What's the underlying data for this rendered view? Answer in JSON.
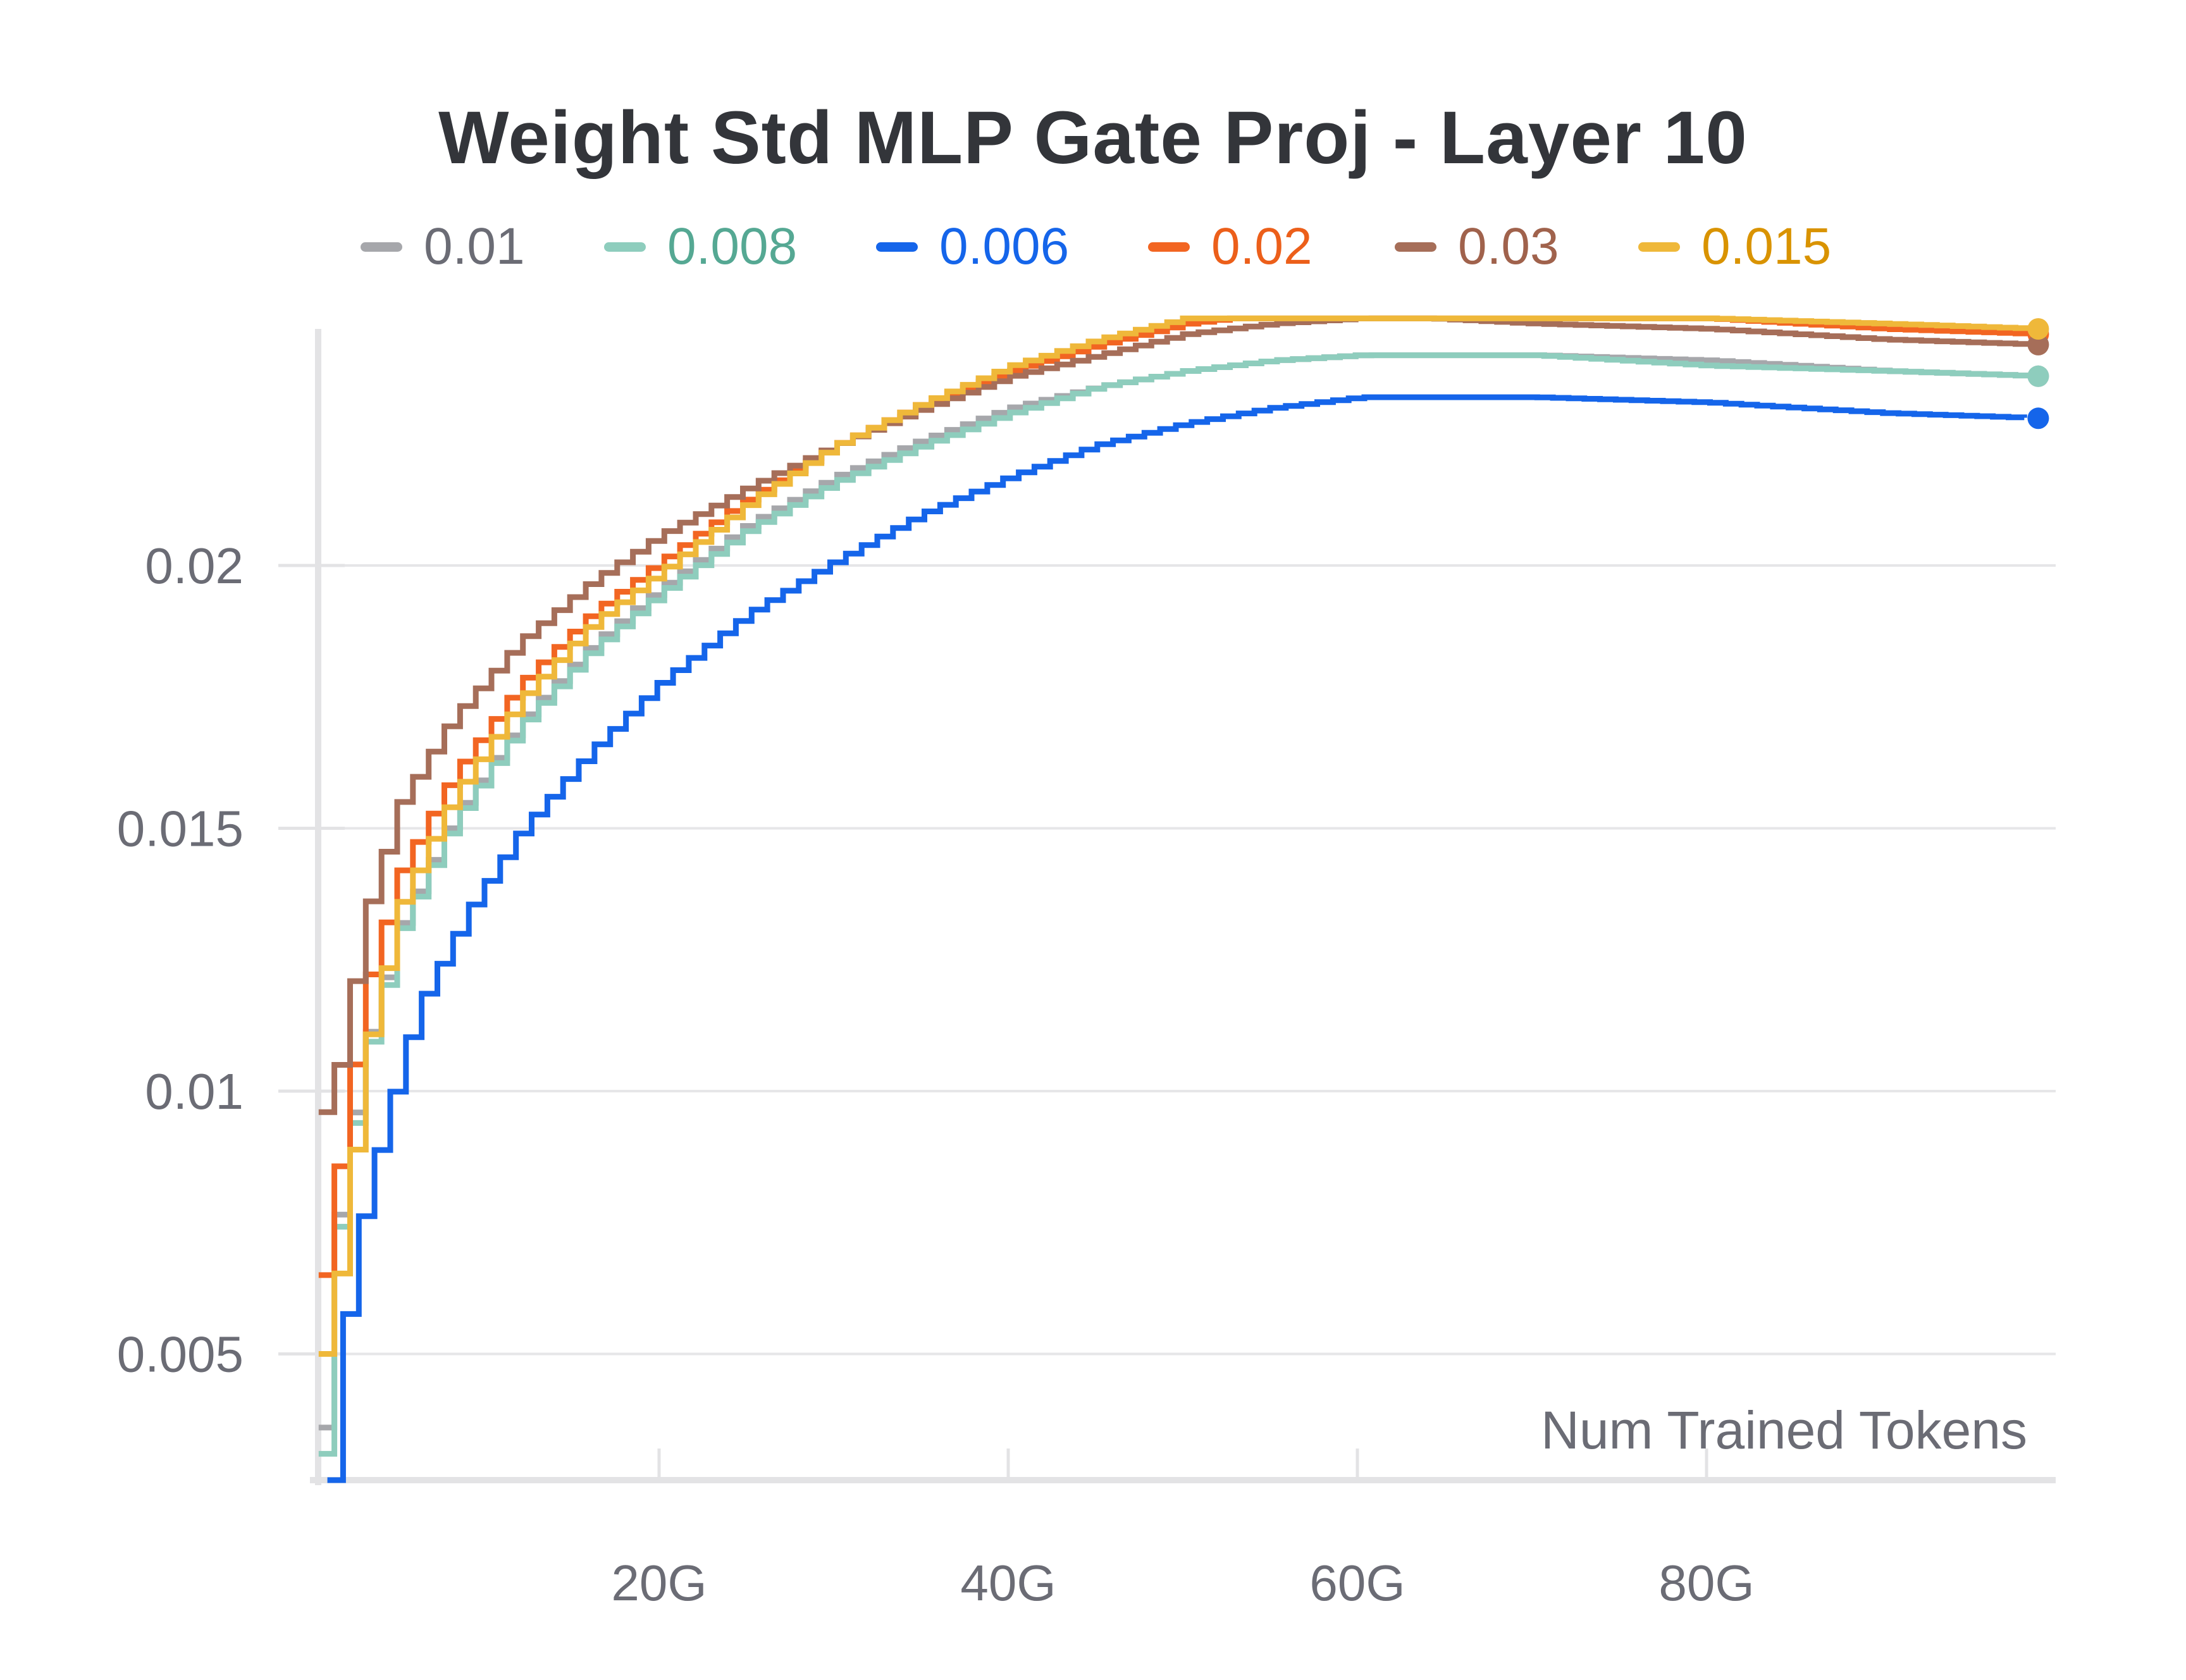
{
  "chart_data": {
    "type": "line",
    "title": "Weight Std MLP Gate Proj - Layer 10",
    "xlabel": "Num Trained Tokens",
    "ylabel": "",
    "xlim": [
      0,
      100
    ],
    "ylim": [
      0.0026,
      0.0245
    ],
    "x_ticks": [
      {
        "value": 20,
        "label": "20G"
      },
      {
        "value": 40,
        "label": "40G"
      },
      {
        "value": 60,
        "label": "60G"
      },
      {
        "value": 80,
        "label": "80G"
      }
    ],
    "y_ticks": [
      {
        "value": 0.005,
        "label": "0.005"
      },
      {
        "value": 0.01,
        "label": "0.01"
      },
      {
        "value": 0.015,
        "label": "0.015"
      },
      {
        "value": 0.02,
        "label": "0.02"
      }
    ],
    "grid": true,
    "legend_position": "top-center",
    "series": [
      {
        "name": "0.01",
        "color": "#a6a7ab",
        "label_color": "#6b6c75",
        "x": [
          0.5,
          1.5,
          3.0,
          5.0,
          8.0,
          12.0,
          16.0,
          20.0,
          25.0,
          30.0,
          35.0,
          40.0,
          45.0,
          50.0,
          55.0,
          60.0,
          64.0,
          70.0,
          80.0,
          90.0,
          99.0
        ],
        "y": [
          0.0036,
          0.0081,
          0.0109,
          0.0132,
          0.0152,
          0.0171,
          0.0185,
          0.0196,
          0.0208,
          0.0217,
          0.0224,
          0.023,
          0.0234,
          0.0237,
          0.0239,
          0.024,
          0.024,
          0.024,
          0.0239,
          0.0237,
          0.0236
        ]
      },
      {
        "name": "0.008",
        "color": "#8ecdbd",
        "label_color": "#55a893",
        "x": [
          0.5,
          1.5,
          3.0,
          5.0,
          8.0,
          12.0,
          16.0,
          20.0,
          25.0,
          30.0,
          35.0,
          40.0,
          45.0,
          50.0,
          55.0,
          60.0,
          64.0,
          70.0,
          80.0,
          90.0,
          99.0
        ],
        "y": [
          0.0031,
          0.0079,
          0.0107,
          0.0131,
          0.0151,
          0.017,
          0.0184,
          0.0195,
          0.0207,
          0.0216,
          0.0223,
          0.0229,
          0.0234,
          0.0237,
          0.0239,
          0.024,
          0.024,
          0.024,
          0.0238,
          0.0237,
          0.0236
        ]
      },
      {
        "name": "0.006",
        "color": "#1565ea",
        "label_color": "#1565ea",
        "x": [
          1.0,
          1.5,
          2.5,
          4.0,
          6.0,
          9.0,
          12.0,
          16.0,
          20.0,
          25.0,
          30.0,
          35.0,
          40.0,
          45.0,
          50.0,
          55.0,
          60.0,
          64.0,
          70.0,
          80.0,
          90.0,
          99.0
        ],
        "y": [
          0.0026,
          0.0048,
          0.0072,
          0.0093,
          0.0116,
          0.0135,
          0.015,
          0.0165,
          0.0178,
          0.0191,
          0.0201,
          0.021,
          0.0217,
          0.0223,
          0.0227,
          0.023,
          0.0232,
          0.0232,
          0.0232,
          0.0231,
          0.0229,
          0.0228
        ]
      },
      {
        "name": "0.02",
        "color": "#f26522",
        "label_color": "#ec5f1a",
        "x": [
          0.5,
          1.5,
          3.0,
          5.0,
          8.0,
          12.0,
          16.0,
          20.0,
          25.0,
          30.0,
          35.0,
          40.0,
          45.0,
          50.0,
          55.0,
          60.0,
          64.0,
          70.0,
          80.0,
          90.0,
          99.0
        ],
        "y": [
          0.0065,
          0.0088,
          0.012,
          0.0142,
          0.016,
          0.0178,
          0.0191,
          0.0201,
          0.0213,
          0.0223,
          0.0231,
          0.0237,
          0.0242,
          0.0246,
          0.0248,
          0.0249,
          0.0249,
          0.0248,
          0.0247,
          0.0245,
          0.0244
        ]
      },
      {
        "name": "0.03",
        "color": "#a66e59",
        "label_color": "#a0624c",
        "x": [
          0.5,
          1.5,
          3.0,
          5.0,
          8.0,
          12.0,
          16.0,
          20.0,
          25.0,
          30.0,
          35.0,
          40.0,
          45.0,
          50.0,
          55.0,
          60.0,
          64.0,
          70.0,
          80.0,
          90.0,
          99.0
        ],
        "y": [
          0.0096,
          0.0106,
          0.0134,
          0.0155,
          0.0171,
          0.0186,
          0.0197,
          0.0206,
          0.0215,
          0.0223,
          0.023,
          0.0236,
          0.024,
          0.0244,
          0.0246,
          0.0247,
          0.0247,
          0.0246,
          0.0245,
          0.0243,
          0.0242
        ]
      },
      {
        "name": "0.015",
        "color": "#efb83a",
        "label_color": "#d99300",
        "x": [
          0.5,
          1.5,
          3.0,
          5.0,
          8.0,
          12.0,
          16.0,
          20.0,
          25.0,
          30.0,
          35.0,
          40.0,
          45.0,
          50.0,
          55.0,
          60.0,
          64.0,
          70.0,
          80.0,
          90.0,
          99.0
        ],
        "y": [
          0.005,
          0.0067,
          0.0108,
          0.0136,
          0.0156,
          0.0175,
          0.0189,
          0.0199,
          0.0212,
          0.0223,
          0.0231,
          0.0238,
          0.0243,
          0.0247,
          0.0249,
          0.025,
          0.025,
          0.0249,
          0.0247,
          0.0246,
          0.0245
        ]
      }
    ]
  }
}
